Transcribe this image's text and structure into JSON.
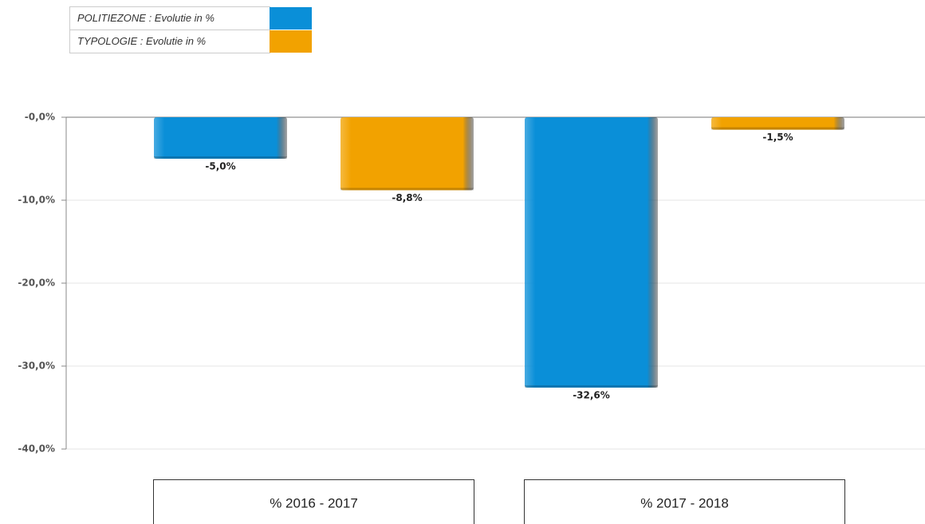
{
  "chart_data": {
    "type": "bar",
    "categories": [
      "% 2016 - 2017",
      "% 2017 - 2018"
    ],
    "series": [
      {
        "name": "POLITIEZONE : Evolutie in %",
        "color": "#0a8fd8",
        "values": [
          -5.0,
          -32.6
        ],
        "value_labels": [
          "-5,0%",
          "-32,6%"
        ]
      },
      {
        "name": "TYPOLOGIE : Evolutie in %",
        "color": "#f2a200",
        "values": [
          -8.8,
          -1.5
        ],
        "value_labels": [
          "-8,8%",
          "-1,5%"
        ]
      }
    ],
    "ylim": [
      -40,
      0
    ],
    "yticks": [
      {
        "value": 0,
        "label": "-0,0%"
      },
      {
        "value": -10,
        "label": "-10,0%"
      },
      {
        "value": -20,
        "label": "-20,0%"
      },
      {
        "value": -30,
        "label": "-30,0%"
      },
      {
        "value": -40,
        "label": "-40,0%"
      }
    ],
    "grid": true
  }
}
